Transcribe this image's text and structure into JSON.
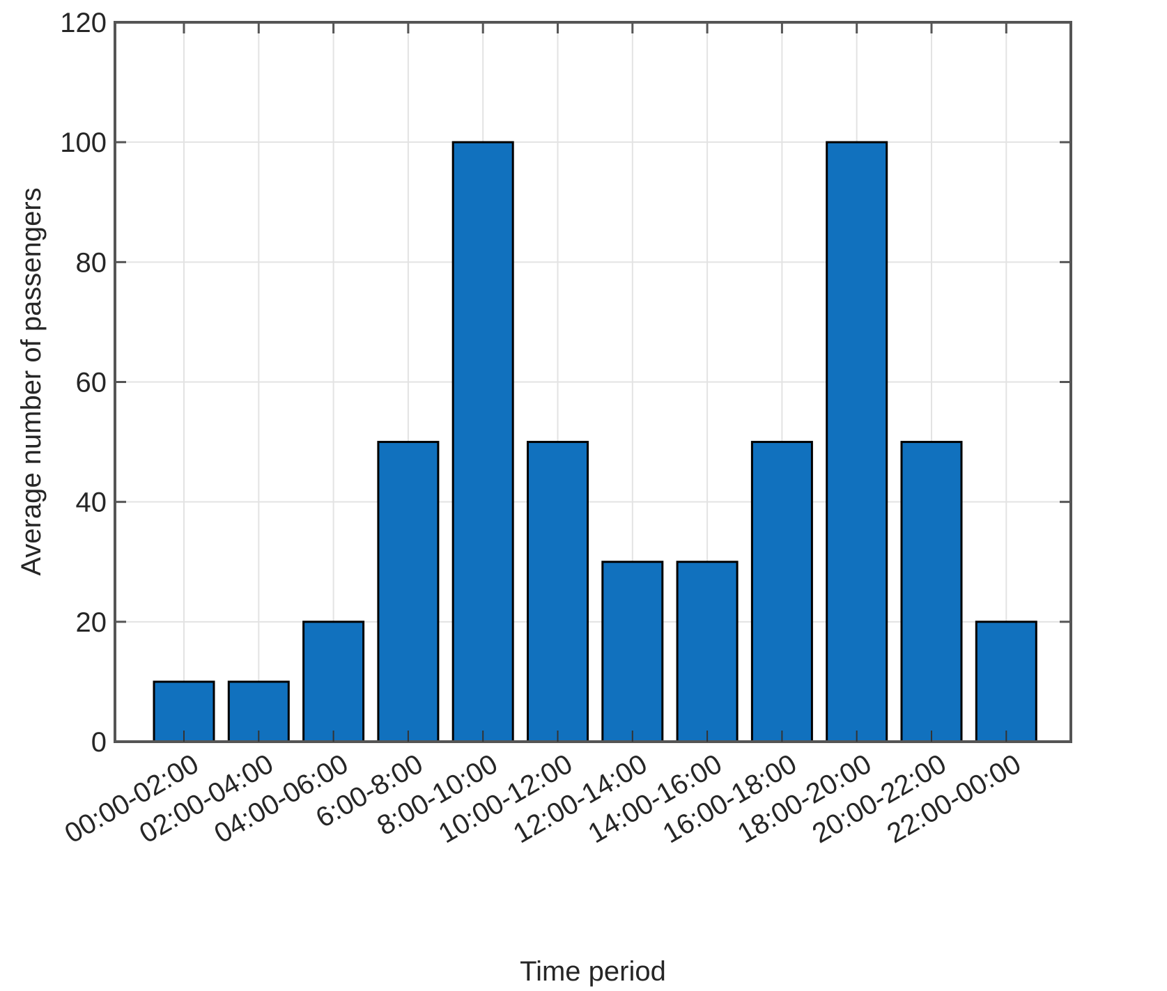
{
  "chart_data": {
    "type": "bar",
    "title": "",
    "xlabel": "Time period",
    "ylabel": "Average number of passengers",
    "categories": [
      "00:00-02:00",
      "02:00-04:00",
      "04:00-06:00",
      "6:00-8:00",
      "8:00-10:00",
      "10:00-12:00",
      "12:00-14:00",
      "14:00-16:00",
      "16:00-18:00",
      "18:00-20:00",
      "20:00-22:00",
      "22:00-00:00"
    ],
    "values": [
      10,
      10,
      20,
      50,
      100,
      50,
      30,
      30,
      50,
      100,
      50,
      20
    ],
    "ylim": [
      0,
      120
    ],
    "yticks": [
      0,
      20,
      40,
      60,
      80,
      100,
      120
    ],
    "grid": true,
    "legend": null,
    "bar_color": "#1171BE",
    "edge_color": "#000000"
  }
}
